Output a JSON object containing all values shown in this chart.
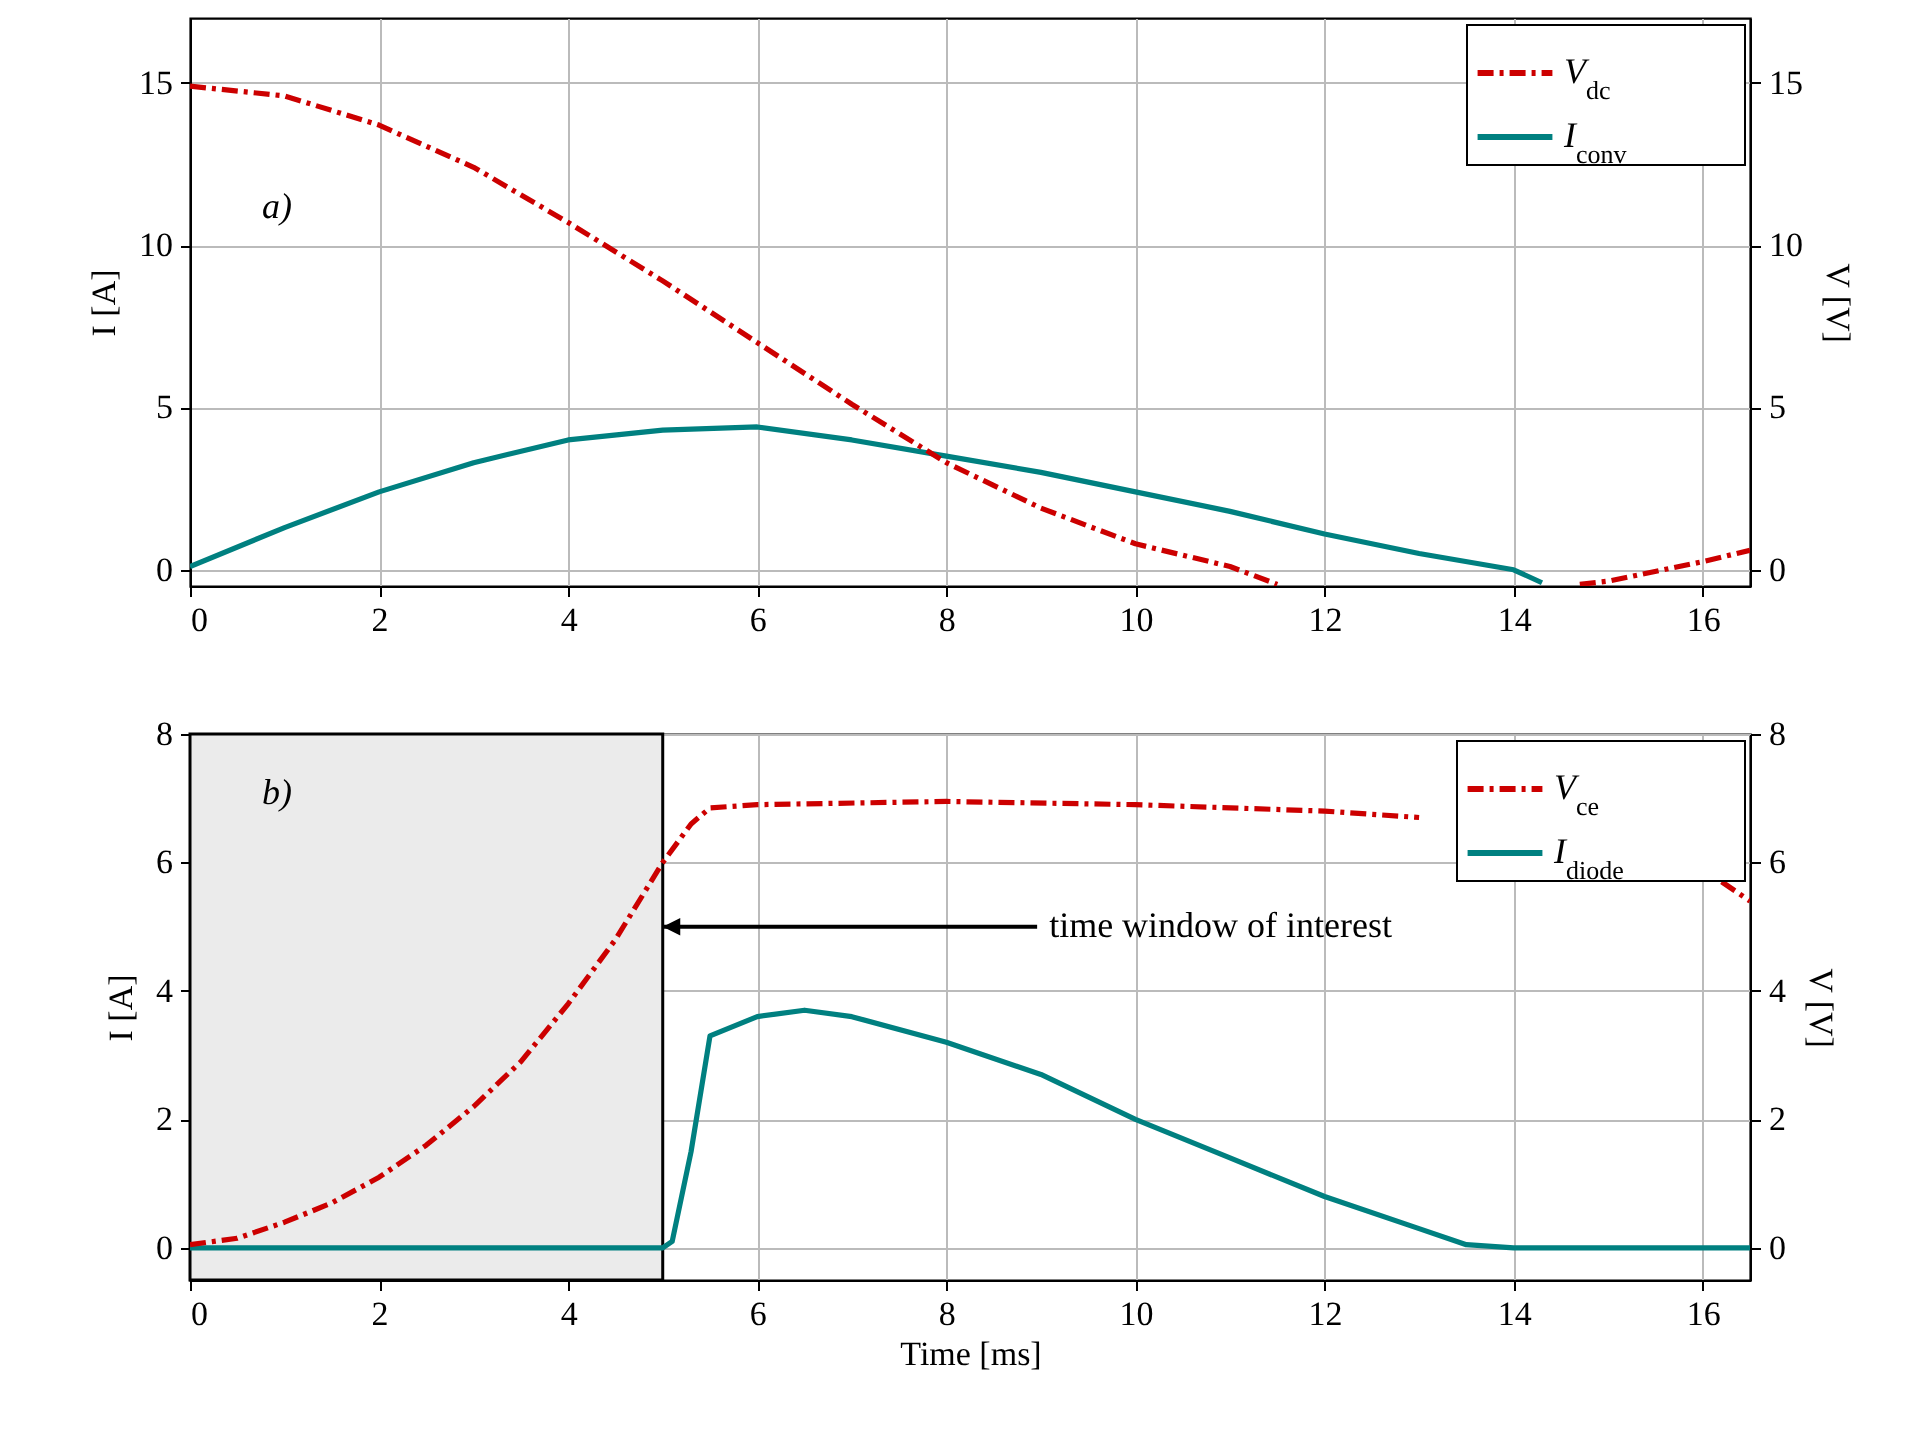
{
  "chart_data": [
    {
      "type": "line",
      "ylabel": "I [A]",
      "y2label": "V [V]",
      "annotations": [
        "a)"
      ],
      "xlim": [
        0,
        16.5
      ],
      "xticks": [
        0,
        2,
        4,
        6,
        8,
        10,
        12,
        14,
        16
      ],
      "ylim": [
        -0.5,
        17
      ],
      "yticks": [
        0,
        5,
        10,
        15
      ],
      "y2lim": [
        -0.5,
        17
      ],
      "y2ticks": [
        0,
        5,
        10,
        15
      ],
      "grid": true,
      "legend": "top right",
      "series": [
        {
          "name": "V$_{dc}$",
          "color": "#cc0000",
          "axis": "y2",
          "line_style": "dashed",
          "x": [
            0,
            1,
            2,
            3,
            4,
            5,
            6,
            7,
            8,
            9,
            10,
            11,
            11.5,
            11.7,
            14.5,
            14.7,
            15,
            16,
            16.5
          ],
          "values": [
            14.9,
            14.6,
            13.7,
            12.4,
            10.7,
            8.9,
            7.0,
            5.1,
            3.3,
            1.9,
            0.8,
            0.1,
            -0.45,
            null,
            null,
            -0.45,
            -0.35,
            0.25,
            0.6
          ]
        },
        {
          "name": "I$_{conv}$",
          "color": "#008080",
          "axis": "y",
          "line_style": "solid",
          "x": [
            0,
            1,
            2,
            3,
            4,
            5,
            6,
            7,
            8,
            9,
            10,
            11,
            12,
            13,
            14,
            14.3
          ],
          "values": [
            0.1,
            1.3,
            2.4,
            3.3,
            4.0,
            4.3,
            4.4,
            4.0,
            3.5,
            3.0,
            2.4,
            1.8,
            1.1,
            0.5,
            0.0,
            -0.4
          ]
        }
      ]
    },
    {
      "type": "line",
      "xlabel": "Time [ms]",
      "ylabel": "I [A]",
      "y2label": "V [V]",
      "annotations": [
        "b)",
        {
          "text": "time window of interest",
          "x": 5,
          "y": 5
        }
      ],
      "xlim": [
        0,
        16.5
      ],
      "xticks": [
        0,
        2,
        4,
        6,
        8,
        10,
        12,
        14,
        16
      ],
      "ylim": [
        -0.5,
        8
      ],
      "yticks": [
        0,
        2,
        4,
        6,
        8
      ],
      "y2lim": [
        -0.5,
        8
      ],
      "y2ticks": [
        0,
        2,
        4,
        6,
        8
      ],
      "grid": true,
      "legend": "top right",
      "bands": [
        {
          "axis": "x",
          "from": 0,
          "to": 5,
          "color": "#ebebeb"
        }
      ],
      "series": [
        {
          "name": "V$_{ce}$",
          "color": "#cc0000",
          "axis": "y2",
          "line_style": "dashed",
          "x": [
            0,
            0.5,
            1,
            1.5,
            2,
            2.5,
            3,
            3.5,
            4,
            4.5,
            5,
            5.3,
            5.5,
            6,
            8,
            10,
            12,
            13,
            13.4,
            16.2,
            16.5
          ],
          "values": [
            0.05,
            0.15,
            0.4,
            0.7,
            1.1,
            1.6,
            2.2,
            2.9,
            3.8,
            4.8,
            6.0,
            6.6,
            6.85,
            6.9,
            6.95,
            6.9,
            6.8,
            6.7,
            null,
            5.7,
            5.4
          ]
        },
        {
          "name": "I$_{diode}$",
          "color": "#008080",
          "axis": "y",
          "line_style": "solid",
          "x": [
            0,
            1,
            2,
            3,
            4,
            5,
            5.1,
            5.3,
            5.5,
            6,
            6.5,
            7,
            8,
            9,
            10,
            11,
            12,
            13,
            13.5,
            14,
            15,
            16.5
          ],
          "values": [
            0,
            0,
            0,
            0,
            0,
            0,
            0.1,
            1.5,
            3.3,
            3.6,
            3.7,
            3.6,
            3.2,
            2.7,
            2.0,
            1.4,
            0.8,
            0.3,
            0.05,
            0,
            0,
            0
          ]
        }
      ]
    }
  ]
}
